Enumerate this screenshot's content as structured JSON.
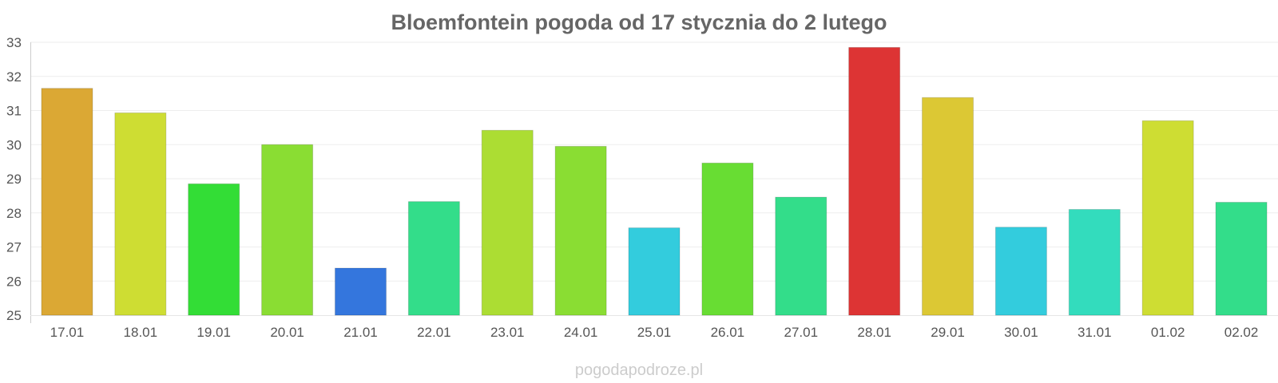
{
  "watermark": "pogodapodroze.pl",
  "chart_data": {
    "type": "bar",
    "title": "Bloemfontein pogoda od 17 stycznia do 2 lutego",
    "xlabel": "",
    "ylabel": "",
    "ylim": [
      25,
      33
    ],
    "yticks": [
      "25",
      "26",
      "27",
      "28",
      "29",
      "30",
      "31",
      "32",
      "33"
    ],
    "grid": true,
    "legend": "none",
    "categories": [
      "17.01",
      "18.01",
      "19.01",
      "20.01",
      "21.01",
      "22.01",
      "23.01",
      "24.01",
      "25.01",
      "26.01",
      "27.01",
      "28.01",
      "29.01",
      "30.01",
      "31.01",
      "01.02",
      "02.02"
    ],
    "values": [
      31.65,
      30.93,
      28.85,
      30.0,
      26.38,
      28.33,
      30.42,
      29.95,
      27.56,
      29.46,
      28.46,
      32.85,
      31.38,
      27.58,
      28.1,
      30.7,
      28.31
    ],
    "colors": [
      "#dba834",
      "#cedd33",
      "#33dd36",
      "#8add33",
      "#3476dd",
      "#33dd8a",
      "#acdd33",
      "#8add33",
      "#33ccdd",
      "#68dd33",
      "#33dd8a",
      "#dd3434",
      "#dcc834",
      "#33ccdd",
      "#33dcbd",
      "#cedd33",
      "#33dd8a"
    ]
  }
}
